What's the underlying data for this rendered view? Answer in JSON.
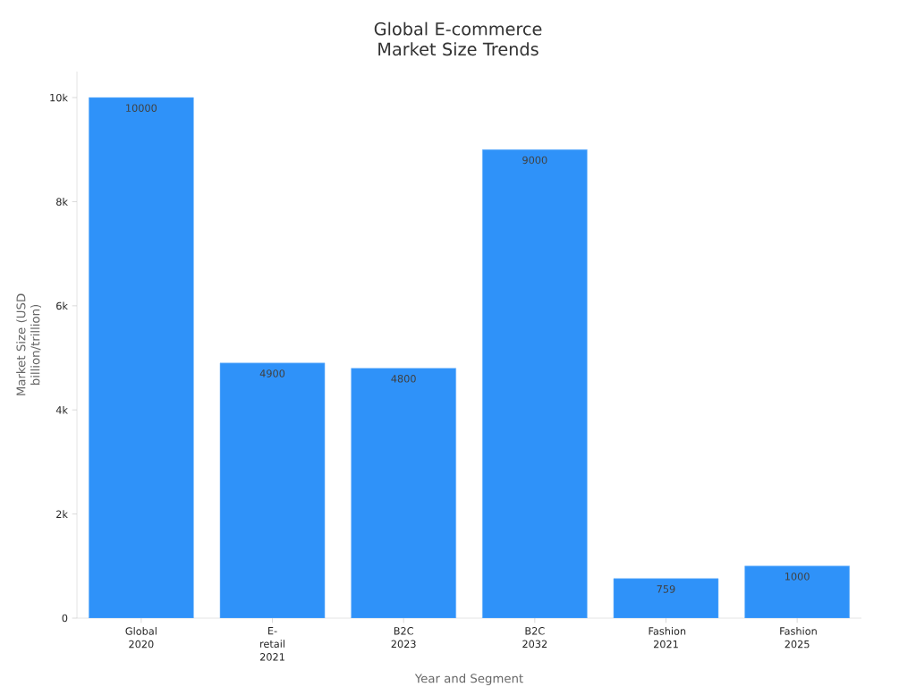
{
  "chart_data": {
    "type": "bar",
    "title": "Global E-commerce Market Size Trends",
    "xlabel": "Year and Segment",
    "ylabel": "Market Size (USD billion/trillion)",
    "categories": [
      "Global 2020",
      "E-retail 2021",
      "B2C 2023",
      "B2C 2032",
      "Fashion 2021",
      "Fashion 2025"
    ],
    "values": [
      10000,
      4900,
      4800,
      9000,
      759,
      1000
    ],
    "color": "#2f92f9",
    "data_labels": true,
    "ylim": [
      0,
      10500
    ],
    "yticks": [
      0,
      {
        "value": 2000,
        "label": "2k"
      },
      {
        "value": 4000,
        "label": "4k"
      },
      {
        "value": 6000,
        "label": "6k"
      },
      {
        "value": 8000,
        "label": "8k"
      },
      {
        "value": 10000,
        "label": "10k"
      }
    ]
  }
}
